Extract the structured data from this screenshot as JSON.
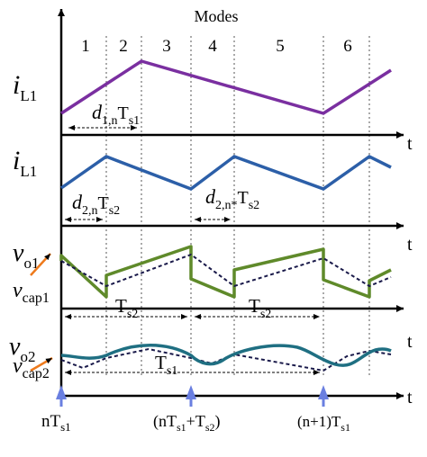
{
  "modes": {
    "title": "Modes",
    "labels": [
      "1",
      "2",
      "3",
      "4",
      "5",
      "6"
    ]
  },
  "axes": {
    "time_label": "t"
  },
  "signals": {
    "row1": {
      "main": "i",
      "sub": "L1",
      "color": "#7a2fa0"
    },
    "row2": {
      "main": "i",
      "sub": "L1",
      "color": "#2c5fa8"
    },
    "row3": {
      "main": "v",
      "sub": "o1",
      "color": "#5f8a2a",
      "cap_main": "v",
      "cap_sub": "cap1"
    },
    "row4": {
      "main": "v",
      "sub": "o2",
      "color": "#1f6f82",
      "cap_main": "v",
      "cap_sub": "cap2"
    }
  },
  "annotations": {
    "d1": {
      "main": "d",
      "sub": "1,n",
      "tail": "T",
      "tail_sub": "s1"
    },
    "d2": {
      "main": "d",
      "sub": "2,n",
      "tail": "T",
      "tail_sub": "s2"
    },
    "d2star": {
      "main": "d",
      "sub": "2,n*",
      "tail": "T",
      "tail_sub": "s2"
    },
    "ts2_a": {
      "main": "T",
      "sub": "s2"
    },
    "ts2_b": {
      "main": "T",
      "sub": "s2"
    },
    "ts1": {
      "main": "T",
      "sub": "s1"
    }
  },
  "time_marks": {
    "m1": {
      "main": "nT",
      "sub": "s1"
    },
    "m2": {
      "open": "(nT",
      "sub1": "s1",
      "mid": "+T",
      "sub2": "s2",
      "close": ")"
    },
    "m3": {
      "main": "(n+1)T",
      "sub": "s1"
    }
  },
  "colors": {
    "axis": "#000000",
    "dashed": "#1a1a4a",
    "arrow_blue": "#6a7fe0",
    "arrow_orange": "#ee7a1c"
  }
}
